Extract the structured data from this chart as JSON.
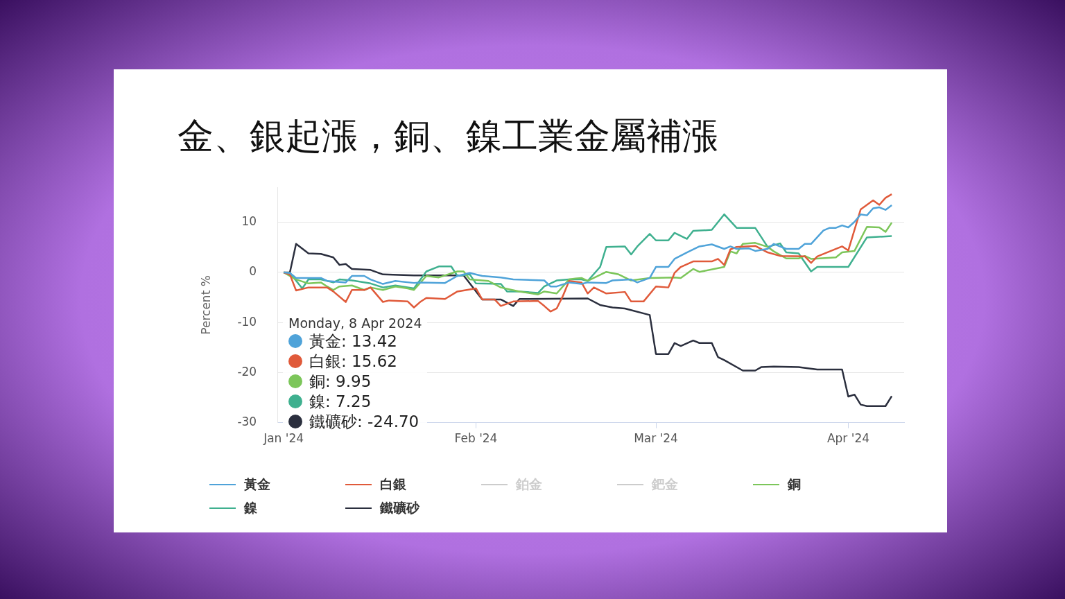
{
  "chart_data": {
    "type": "line",
    "title": "金、銀起漲，銅、鎳工業金屬補漲",
    "ylabel": "Percent %",
    "xlim": [
      "2023-12-31",
      "2024-04-10"
    ],
    "xticks": [
      {
        "value": "2024-01-01",
        "label": "Jan '24"
      },
      {
        "value": "2024-02-01",
        "label": "Feb '24"
      },
      {
        "value": "2024-03-01",
        "label": "Mar '24"
      },
      {
        "value": "2024-04-01",
        "label": "Apr '24"
      }
    ],
    "ylim": [
      -30,
      17
    ],
    "yticks": [
      -30,
      -20,
      -10,
      0,
      10
    ],
    "grid": "y",
    "legend": "bottom",
    "marker": "none",
    "annotations": [
      "Monday, 8 Apr 2024",
      "黃金: 13.42",
      "白銀: 15.62",
      "銅: 9.95",
      "鎳: 7.25",
      "鐵礦砂: -24.70"
    ],
    "series": [
      {
        "name": "黃金",
        "color": "#4fa3d9",
        "x": [
          "2024-01-01",
          "2024-01-02",
          "2024-01-03",
          "2024-01-07",
          "2024-01-08",
          "2024-01-11",
          "2024-01-12",
          "2024-01-14",
          "2024-01-15",
          "2024-01-17",
          "2024-01-19",
          "2024-01-22",
          "2024-01-23",
          "2024-01-27",
          "2024-01-29",
          "2024-01-31",
          "2024-02-02",
          "2024-02-05",
          "2024-02-07",
          "2024-02-12",
          "2024-02-13",
          "2024-02-14",
          "2024-02-16",
          "2024-02-18",
          "2024-02-19",
          "2024-02-22",
          "2024-02-23",
          "2024-02-26",
          "2024-02-27",
          "2024-02-29",
          "2024-03-01",
          "2024-03-03",
          "2024-03-04",
          "2024-03-06",
          "2024-03-08",
          "2024-03-10",
          "2024-03-12",
          "2024-03-13",
          "2024-03-14",
          "2024-03-16",
          "2024-03-17",
          "2024-03-19",
          "2024-03-20",
          "2024-03-22",
          "2024-03-24",
          "2024-03-25",
          "2024-03-26",
          "2024-03-28",
          "2024-03-29",
          "2024-03-30",
          "2024-03-31",
          "2024-04-01",
          "2024-04-02",
          "2024-04-03",
          "2024-04-04",
          "2024-04-05",
          "2024-04-06",
          "2024-04-07",
          "2024-04-08"
        ],
        "values": [
          0,
          -0.1,
          -1.1,
          -1.1,
          -1.7,
          -2.0,
          -0.7,
          -0.7,
          -1.4,
          -2.3,
          -1.7,
          -2.1,
          -2.0,
          -2.1,
          -0.7,
          -0.1,
          -0.7,
          -1.0,
          -1.4,
          -1.6,
          -2.8,
          -2.8,
          -2.0,
          -2.3,
          -2.0,
          -2.1,
          -1.6,
          -1.4,
          -2.0,
          -1.1,
          1.1,
          1.1,
          2.7,
          4.0,
          5.2,
          5.6,
          4.7,
          5.2,
          4.7,
          4.8,
          4.3,
          4.7,
          5.7,
          4.7,
          4.7,
          5.7,
          5.7,
          8.4,
          8.9,
          8.9,
          9.4,
          9.0,
          10.1,
          11.6,
          11.4,
          12.8,
          13.0,
          12.5,
          13.42
        ]
      },
      {
        "name": "白銀",
        "color": "#e05a3a",
        "x": [
          "2024-01-01",
          "2024-01-02",
          "2024-01-03",
          "2024-01-05",
          "2024-01-08",
          "2024-01-09",
          "2024-01-11",
          "2024-01-12",
          "2024-01-14",
          "2024-01-15",
          "2024-01-17",
          "2024-01-18",
          "2024-01-21",
          "2024-01-22",
          "2024-01-23",
          "2024-01-24",
          "2024-01-27",
          "2024-01-29",
          "2024-02-01",
          "2024-02-02",
          "2024-02-04",
          "2024-02-05",
          "2024-02-07",
          "2024-02-11",
          "2024-02-12",
          "2024-02-13",
          "2024-02-14",
          "2024-02-15",
          "2024-02-16",
          "2024-02-18",
          "2024-02-19",
          "2024-02-20",
          "2024-02-22",
          "2024-02-25",
          "2024-02-26",
          "2024-02-28",
          "2024-03-01",
          "2024-03-03",
          "2024-03-04",
          "2024-03-05",
          "2024-03-07",
          "2024-03-10",
          "2024-03-11",
          "2024-03-12",
          "2024-03-13",
          "2024-03-14",
          "2024-03-17",
          "2024-03-19",
          "2024-03-21",
          "2024-03-25",
          "2024-03-26",
          "2024-03-27",
          "2024-03-29",
          "2024-03-31",
          "2024-04-01",
          "2024-04-03",
          "2024-04-04",
          "2024-04-05",
          "2024-04-06",
          "2024-04-07",
          "2024-04-08"
        ],
        "values": [
          0,
          -0.4,
          -3.6,
          -3.0,
          -3.0,
          -3.8,
          -5.9,
          -3.5,
          -3.5,
          -3.0,
          -5.9,
          -5.6,
          -5.8,
          -7.0,
          -5.9,
          -5.1,
          -5.3,
          -3.8,
          -3.2,
          -5.4,
          -5.4,
          -6.7,
          -5.8,
          -5.7,
          -6.7,
          -7.8,
          -7.2,
          -4.7,
          -1.7,
          -2.0,
          -4.2,
          -3.0,
          -4.2,
          -3.9,
          -5.8,
          -5.8,
          -2.8,
          -3.0,
          -0.1,
          1.1,
          2.2,
          2.2,
          2.7,
          1.5,
          4.6,
          5.1,
          5.3,
          4.0,
          3.3,
          3.2,
          1.9,
          3.2,
          4.2,
          5.2,
          4.4,
          12.6,
          13.5,
          14.4,
          13.5,
          14.9,
          15.62
        ]
      },
      {
        "name": "鉑金",
        "color": "#cccccc"
      },
      {
        "name": "鈀金",
        "color": "#cccccc"
      },
      {
        "name": "銅",
        "color": "#7cc65a",
        "x": [
          "2024-01-01",
          "2024-01-03",
          "2024-01-05",
          "2024-01-07",
          "2024-01-08",
          "2024-01-09",
          "2024-01-10",
          "2024-01-12",
          "2024-01-14",
          "2024-01-15",
          "2024-01-17",
          "2024-01-19",
          "2024-01-21",
          "2024-01-22",
          "2024-01-24",
          "2024-01-26",
          "2024-01-29",
          "2024-01-30",
          "2024-01-31",
          "2024-02-03",
          "2024-02-05",
          "2024-02-08",
          "2024-02-10",
          "2024-02-11",
          "2024-02-12",
          "2024-02-14",
          "2024-02-16",
          "2024-02-17",
          "2024-02-18",
          "2024-02-19",
          "2024-02-22",
          "2024-02-24",
          "2024-02-26",
          "2024-02-29",
          "2024-03-04",
          "2024-03-05",
          "2024-03-07",
          "2024-03-08",
          "2024-03-12",
          "2024-03-13",
          "2024-03-14",
          "2024-03-15",
          "2024-03-17",
          "2024-03-19",
          "2024-03-20",
          "2024-03-22",
          "2024-03-24",
          "2024-03-25",
          "2024-03-26",
          "2024-03-30",
          "2024-03-31",
          "2024-04-02",
          "2024-04-04",
          "2024-04-06",
          "2024-04-07",
          "2024-04-08"
        ],
        "values": [
          0,
          -1.4,
          -2.2,
          -2.0,
          -2.8,
          -3.5,
          -2.8,
          -2.6,
          -3.5,
          -3.0,
          -3.5,
          -2.8,
          -3.2,
          -3.5,
          -0.7,
          -1.0,
          0.2,
          0.2,
          -1.4,
          -1.7,
          -3.0,
          -3.8,
          -4.2,
          -4.4,
          -3.8,
          -4.2,
          -1.4,
          -1.2,
          -1.1,
          -1.7,
          0.1,
          -0.4,
          -1.6,
          -1.1,
          -1.0,
          -1.1,
          0.7,
          0.1,
          1.1,
          4.2,
          3.8,
          5.7,
          5.9,
          5.1,
          4.2,
          2.8,
          2.8,
          3.3,
          2.7,
          3.0,
          4.0,
          4.3,
          9.1,
          9.0,
          8.1,
          9.95
        ]
      },
      {
        "name": "鎳",
        "color": "#3fb08f",
        "x": [
          "2024-01-01",
          "2024-01-02",
          "2024-01-04",
          "2024-01-05",
          "2024-01-07",
          "2024-01-09",
          "2024-01-10",
          "2024-01-12",
          "2024-01-15",
          "2024-01-17",
          "2024-01-19",
          "2024-01-22",
          "2024-01-24",
          "2024-01-26",
          "2024-01-28",
          "2024-01-29",
          "2024-01-31",
          "2024-02-01",
          "2024-02-05",
          "2024-02-06",
          "2024-02-08",
          "2024-02-11",
          "2024-02-12",
          "2024-02-14",
          "2024-02-16",
          "2024-02-18",
          "2024-02-19",
          "2024-02-21",
          "2024-02-22",
          "2024-02-25",
          "2024-02-26",
          "2024-02-27",
          "2024-02-29",
          "2024-03-01",
          "2024-03-03",
          "2024-03-04",
          "2024-03-06",
          "2024-03-07",
          "2024-03-10",
          "2024-03-12",
          "2024-03-14",
          "2024-03-17",
          "2024-03-19",
          "2024-03-21",
          "2024-03-22",
          "2024-03-24",
          "2024-03-26",
          "2024-03-27",
          "2024-04-01",
          "2024-04-04",
          "2024-04-08"
        ],
        "values": [
          0,
          -0.1,
          -3.2,
          -1.4,
          -1.4,
          -2.0,
          -1.4,
          -1.6,
          -2.2,
          -3.0,
          -2.6,
          -3.2,
          0.2,
          1.2,
          1.2,
          -0.7,
          -0.4,
          -2.2,
          -2.3,
          -3.8,
          -3.8,
          -4.1,
          -2.8,
          -1.6,
          -1.4,
          -1.4,
          -1.7,
          1.1,
          5.1,
          5.2,
          3.6,
          5.2,
          7.7,
          6.4,
          6.4,
          7.9,
          6.7,
          8.3,
          8.5,
          11.6,
          8.9,
          8.9,
          5.1,
          5.8,
          4.0,
          3.8,
          0.2,
          1.1,
          1.1,
          7.0,
          7.25
        ]
      },
      {
        "name": "鐵礦砂",
        "color": "#2b2f3e",
        "x": [
          "2024-01-01",
          "2024-01-02",
          "2024-01-03",
          "2024-01-05",
          "2024-01-07",
          "2024-01-09",
          "2024-01-10",
          "2024-01-11",
          "2024-01-12",
          "2024-01-15",
          "2024-01-17",
          "2024-01-22",
          "2024-01-30",
          "2024-01-31",
          "2024-02-02",
          "2024-02-05",
          "2024-02-07",
          "2024-02-08",
          "2024-02-19",
          "2024-02-21",
          "2024-02-23",
          "2024-02-25",
          "2024-02-29",
          "2024-03-01",
          "2024-03-03",
          "2024-03-04",
          "2024-03-05",
          "2024-03-07",
          "2024-03-08",
          "2024-03-10",
          "2024-03-11",
          "2024-03-12",
          "2024-03-15",
          "2024-03-17",
          "2024-03-18",
          "2024-03-20",
          "2024-03-24",
          "2024-03-27",
          "2024-03-31",
          "2024-04-01",
          "2024-04-02",
          "2024-04-03",
          "2024-04-04",
          "2024-04-07",
          "2024-04-08"
        ],
        "values": [
          0,
          0,
          5.7,
          3.8,
          3.7,
          3.0,
          1.5,
          1.7,
          0.7,
          0.5,
          -0.4,
          -0.6,
          -0.6,
          -2.2,
          -5.4,
          -5.4,
          -6.7,
          -5.3,
          -5.2,
          -6.5,
          -7.0,
          -7.2,
          -8.5,
          -16.3,
          -16.3,
          -14.1,
          -14.7,
          -13.6,
          -14.1,
          -14.1,
          -16.9,
          -17.5,
          -19.6,
          -19.6,
          -18.9,
          -18.8,
          -18.9,
          -19.4,
          -19.4,
          -24.8,
          -24.4,
          -26.4,
          -26.7,
          -26.7,
          -24.7
        ]
      }
    ]
  }
}
